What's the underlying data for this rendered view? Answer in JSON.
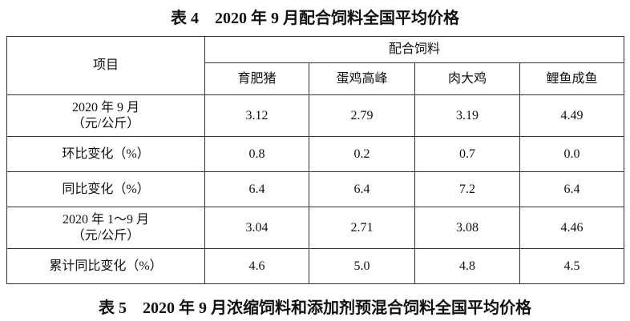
{
  "title": "表 4　2020 年 9 月配合饲料全国平均价格",
  "table": {
    "header": {
      "item": "项目",
      "group": "配合饲料",
      "columns": [
        "育肥猪",
        "蛋鸡高峰",
        "肉大鸡",
        "鲤鱼成鱼"
      ]
    },
    "rows": [
      {
        "label": [
          "2020 年 9 月",
          "（元/公斤）"
        ],
        "values": [
          "3.12",
          "2.79",
          "3.19",
          "4.49"
        ]
      },
      {
        "label": [
          "环比变化（%）"
        ],
        "values": [
          "0.8",
          "0.2",
          "0.7",
          "0.0"
        ]
      },
      {
        "label": [
          "同比变化（%）"
        ],
        "values": [
          "6.4",
          "6.4",
          "7.2",
          "6.4"
        ]
      },
      {
        "label": [
          "2020 年 1～9 月",
          "（元/公斤）"
        ],
        "values": [
          "3.04",
          "2.71",
          "3.08",
          "4.46"
        ]
      },
      {
        "label": [
          "累计同比变化（%）"
        ],
        "values": [
          "4.6",
          "5.0",
          "4.8",
          "4.5"
        ]
      }
    ]
  },
  "next_title": "表 5　2020 年 9 月浓缩饲料和添加剂预混合饲料全国平均价格"
}
